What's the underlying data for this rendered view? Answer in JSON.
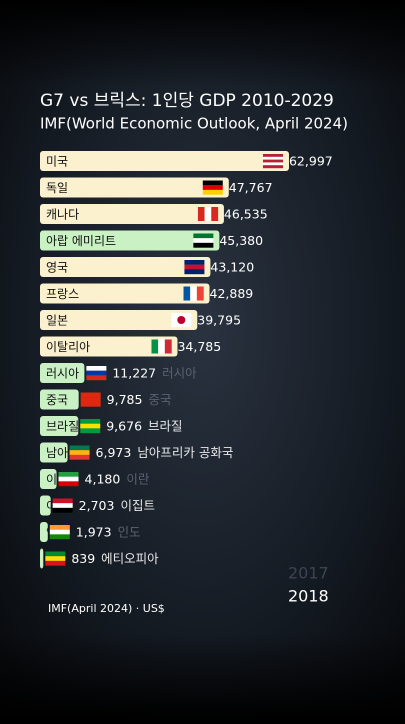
{
  "chart_data": {
    "type": "bar",
    "orientation": "horizontal",
    "title": "G7 vs 브릭스: 1인당 GDP 2010-2029",
    "subtitle": "IMF(World Economic Outlook, April 2024)",
    "categories": [
      "미국",
      "독일",
      "캐나다",
      "아랍 에미리트",
      "영국",
      "프랑스",
      "일본",
      "이탈리아",
      "러시아",
      "중국",
      "브라질",
      "남아프리카 공화국",
      "이란",
      "이집트",
      "인도",
      "에티오피아"
    ],
    "values": [
      62997,
      47767,
      46535,
      45380,
      43120,
      42889,
      39795,
      34785,
      11227,
      9785,
      9676,
      6973,
      4180,
      2703,
      1973,
      839
    ],
    "value_labels": [
      "62,997",
      "47,767",
      "46,535",
      "45,380",
      "43,120",
      "42,889",
      "39,795",
      "34,785",
      "11,227",
      "9,785",
      "9,676",
      "6,973",
      "4,180",
      "2,703",
      "1,973",
      "839"
    ],
    "colors": [
      "#fbf1cf",
      "#fbf1cf",
      "#fbf1cf",
      "#c9f1c3",
      "#fbf1cf",
      "#fbf1cf",
      "#fbf1cf",
      "#fbf1cf",
      "#c9f1c3",
      "#c9f1c3",
      "#c9f1c3",
      "#c9f1c3",
      "#c9f1c3",
      "#c9f1c3",
      "#c9f1c3",
      "#c9f1c3"
    ],
    "xlim": [
      0,
      63000
    ],
    "previous_year": "2017",
    "year": "2018",
    "footnote": "IMF(April 2024) · US$"
  }
}
